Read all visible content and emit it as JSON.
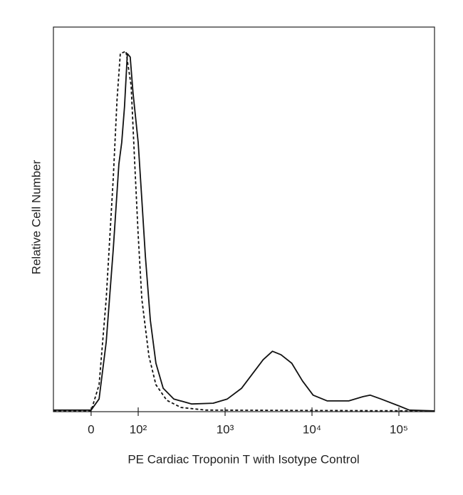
{
  "chart_data": {
    "type": "line",
    "xlabel": "PE Cardiac Troponin T with Isotype Control",
    "ylabel": "Relative Cell Number",
    "xscale": "biexponential",
    "xlim": [
      -80,
      257000
    ],
    "ylim": [
      0,
      100
    ],
    "xticks": [
      0,
      {
        "value": 100,
        "label": "10²"
      },
      {
        "value": 1000,
        "label": "10³"
      },
      {
        "value": 10000,
        "label": "10⁴"
      },
      {
        "value": 100000,
        "label": "10⁵"
      }
    ],
    "series": [
      {
        "color": "#111111",
        "dash": false,
        "x": [
          -80,
          0,
          17,
          32,
          47,
          59,
          65,
          71,
          77,
          83,
          89,
          100,
          110,
          121,
          138,
          160,
          194,
          257,
          413,
          729,
          1060,
          1550,
          2060,
          2740,
          3510,
          4400,
          5850,
          7770,
          10300,
          15000,
          26500,
          38700,
          46800,
          62200,
          100000,
          132000,
          257000
        ],
        "values": [
          0.4,
          0.4,
          3.3,
          18.1,
          42.2,
          64.4,
          70,
          79.3,
          93.1,
          92.2,
          83,
          70,
          55.2,
          40.4,
          23.7,
          12.6,
          6.1,
          3.3,
          2,
          2.2,
          3.3,
          6.1,
          9.8,
          13.5,
          15.7,
          14.8,
          12.6,
          8,
          4.3,
          2.8,
          2.8,
          3.9,
          4.3,
          3.3,
          1.5,
          0.4,
          0.2
        ]
      },
      {
        "color": "#111111",
        "dash": true,
        "x": [
          -80,
          0,
          17,
          32,
          47,
          55,
          62,
          74,
          85,
          92,
          100,
          110,
          133,
          160,
          213,
          311,
          600,
          257000
        ],
        "values": [
          0.2,
          0.2,
          7,
          29.3,
          60.7,
          81.1,
          93.1,
          93.7,
          84.8,
          66.3,
          45.9,
          29.3,
          14.4,
          7,
          2.96,
          1.1,
          0.4,
          0.2
        ]
      }
    ]
  }
}
